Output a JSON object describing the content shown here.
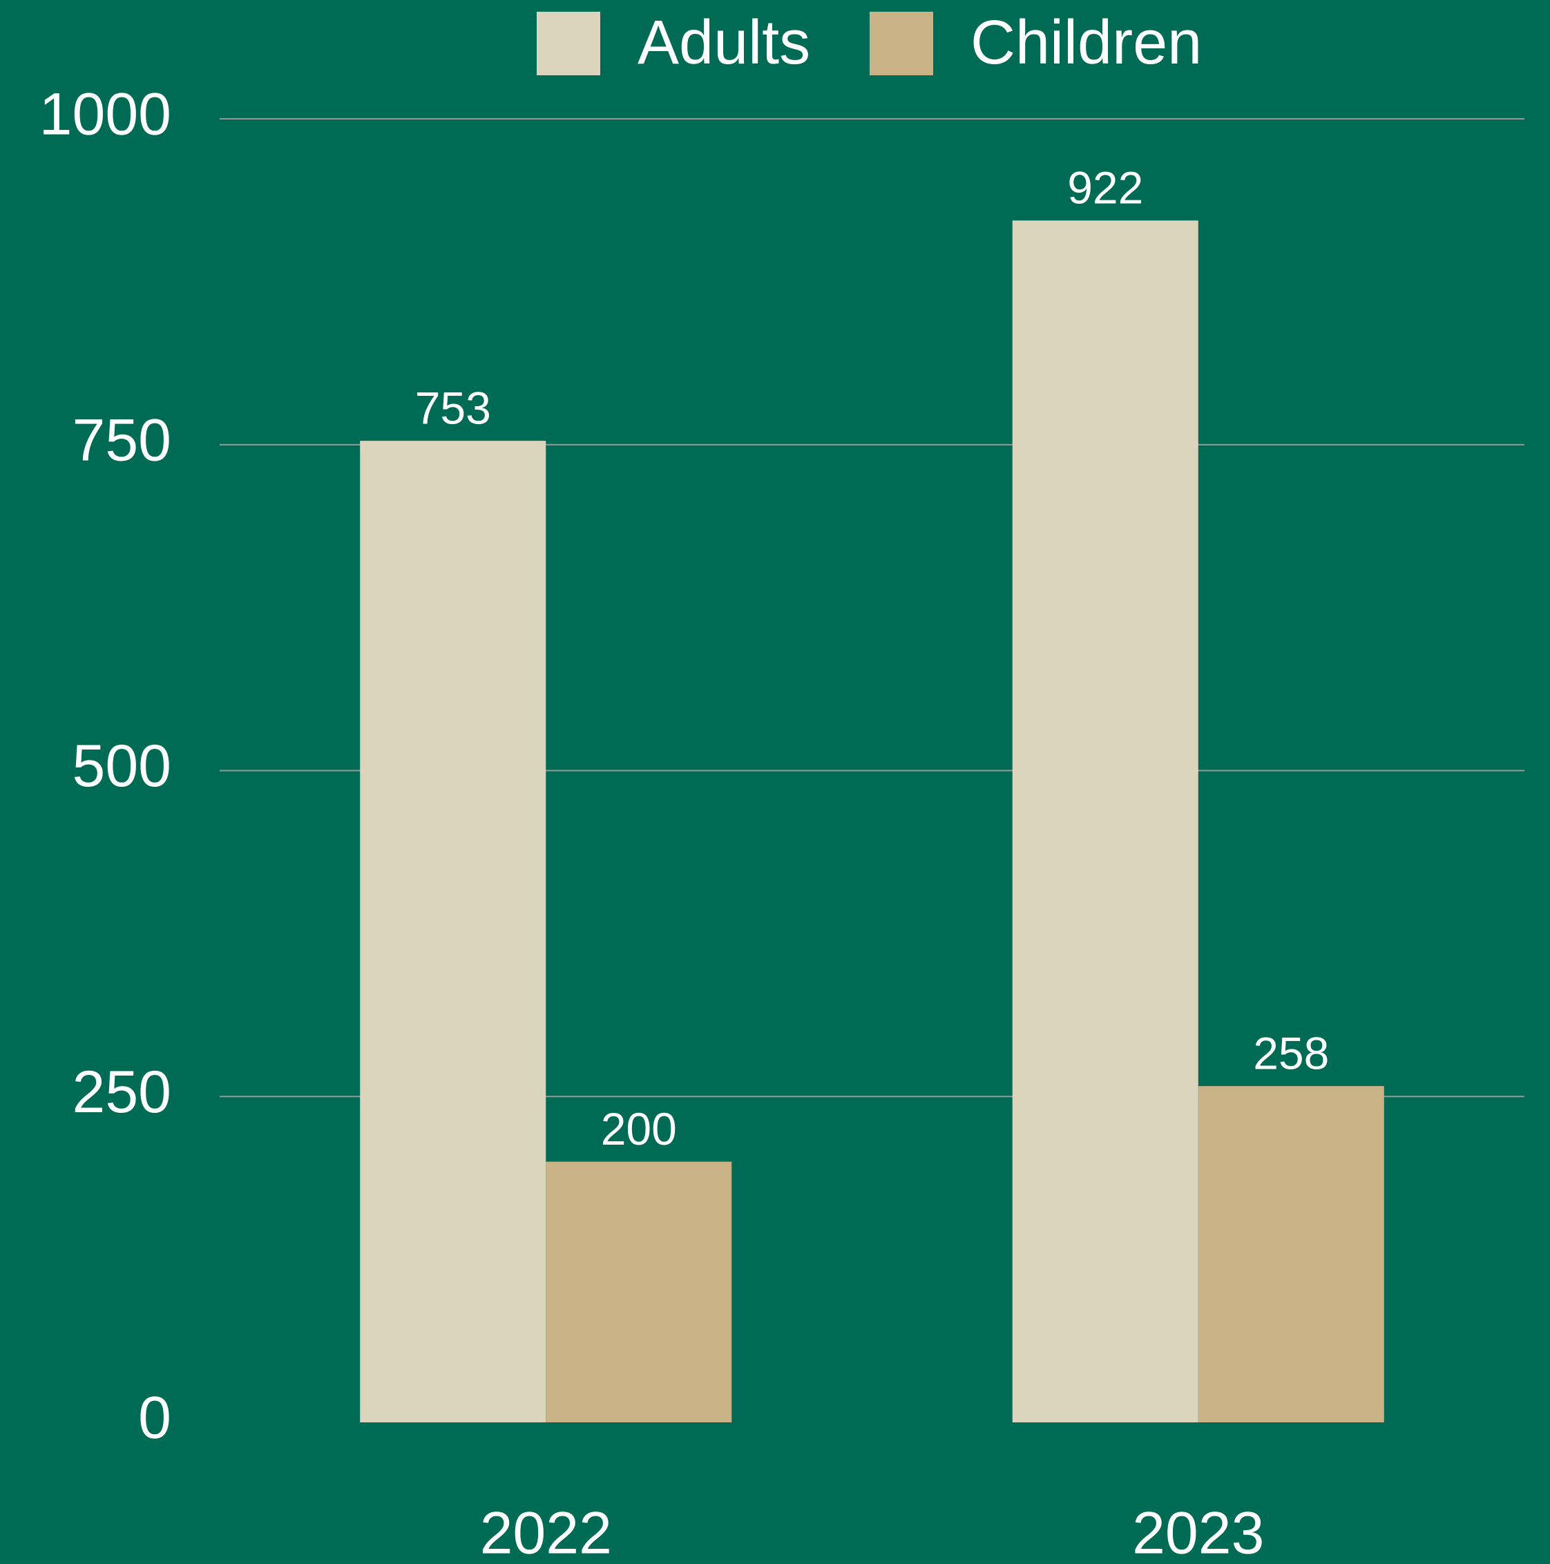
{
  "chart_data": {
    "type": "bar",
    "categories": [
      "2022",
      "2023"
    ],
    "series": [
      {
        "name": "Adults",
        "color": "#dbd5be",
        "values": [
          753,
          922
        ]
      },
      {
        "name": "Children",
        "color": "#c9b285",
        "values": [
          200,
          258
        ]
      }
    ],
    "ylim": [
      0,
      1000
    ],
    "yticks": [
      0,
      250,
      500,
      750,
      1000
    ],
    "grid": true,
    "legend": "top"
  }
}
